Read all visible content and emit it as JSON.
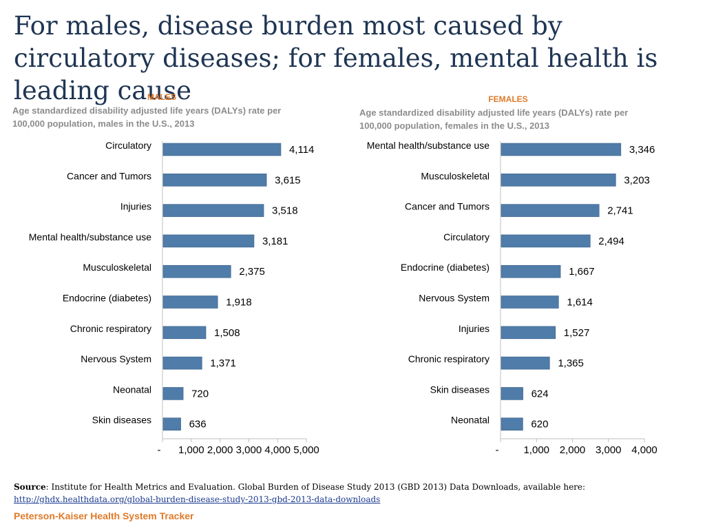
{
  "title": "For males, disease burden most caused by circulatory diseases; for females, mental health is leading cause",
  "colors": {
    "bar": "#4f7ca9",
    "accent": "#e07a28",
    "title": "#1f3553",
    "subtitle": "#8c8c8c"
  },
  "chart_data": [
    {
      "type": "bar",
      "orientation": "horizontal",
      "panel_label": "MALES",
      "subtitle": "Age standardized disability adjusted life years (DALYs) rate per 100,000 population, males in the U.S., 2013",
      "categories": [
        "Circulatory",
        "Cancer and Tumors",
        "Injuries",
        "Mental health/substance use",
        "Musculoskeletal",
        "Endocrine (diabetes)",
        "Chronic respiratory",
        "Nervous System",
        "Neonatal",
        "Skin diseases"
      ],
      "values": [
        4114,
        3615,
        3518,
        3181,
        2375,
        1918,
        1508,
        1371,
        720,
        636
      ],
      "value_labels": [
        "4,114",
        "3,615",
        "3,518",
        "3,181",
        "2,375",
        "1,918",
        "1,508",
        "1,371",
        "720",
        "636"
      ],
      "xlim": [
        0,
        5000
      ],
      "ticks": [
        0,
        1000,
        2000,
        3000,
        4000,
        5000
      ],
      "tick_labels": [
        "-",
        "1,000",
        "2,000",
        "3,000",
        "4,000",
        "5,000"
      ]
    },
    {
      "type": "bar",
      "orientation": "horizontal",
      "panel_label": "FEMALES",
      "subtitle": "Age standardized disability adjusted life years (DALYs) rate per 100,000 population, females in the U.S., 2013",
      "categories": [
        "Mental health/substance use",
        "Musculoskeletal",
        "Cancer and Tumors",
        "Circulatory",
        "Endocrine (diabetes)",
        "Nervous System",
        "Injuries",
        "Chronic respiratory",
        "Skin diseases",
        "Neonatal"
      ],
      "values": [
        3346,
        3203,
        2741,
        2494,
        1667,
        1614,
        1527,
        1365,
        624,
        620
      ],
      "value_labels": [
        "3,346",
        "3,203",
        "2,741",
        "2,494",
        "1,667",
        "1,614",
        "1,527",
        "1,365",
        "624",
        "620"
      ],
      "xlim": [
        0,
        4000
      ],
      "ticks": [
        0,
        1000,
        2000,
        3000,
        4000
      ],
      "tick_labels": [
        "-",
        "1,000",
        "2,000",
        "3,000",
        "4,000"
      ]
    }
  ],
  "source": {
    "label": "Source",
    "text": ": Institute for Health Metrics and Evaluation. Global Burden of Disease Study 2013 (GBD 2013) Data Downloads, available here:",
    "url": "http://ghdx.healthdata.org/global-burden-disease-study-2013-gbd-2013-data-downloads"
  },
  "footer": "Peterson-Kaiser Health System Tracker"
}
